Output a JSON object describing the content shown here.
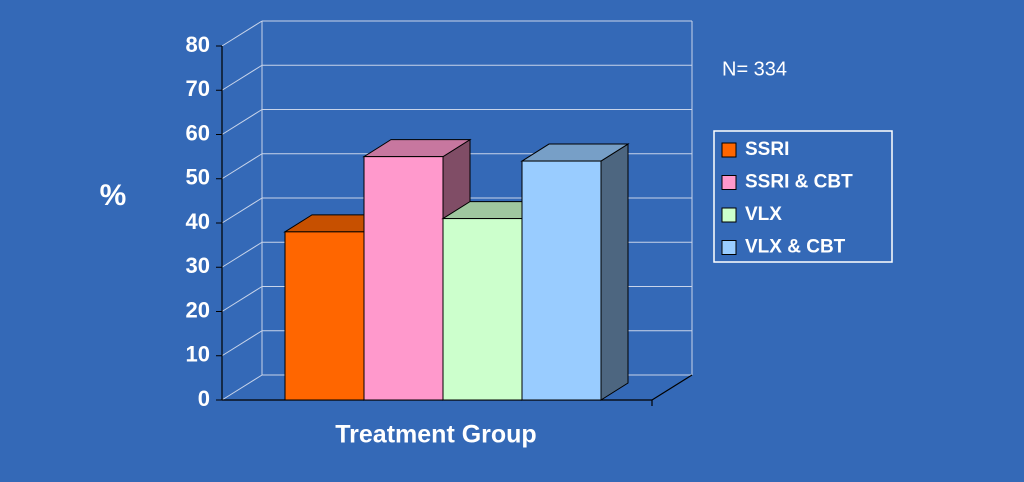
{
  "chart_data": {
    "type": "bar3d",
    "y_label": "%",
    "x_label": "Treatment Group",
    "annotation": "N= 334",
    "series": [
      {
        "name": "SSRI",
        "color": "#ff6600",
        "values": [
          38
        ]
      },
      {
        "name": "SSRI & CBT",
        "color": "#ff99cc",
        "values": [
          55
        ]
      },
      {
        "name": "VLX",
        "color": "#ccffcc",
        "values": [
          41
        ]
      },
      {
        "name": "VLX & CBT",
        "color": "#99ccff",
        "values": [
          54
        ]
      }
    ],
    "ylim": [
      0,
      80
    ],
    "yticks": [
      0,
      10,
      20,
      30,
      40,
      50,
      60,
      70,
      80
    ],
    "grid": true,
    "legend": "right"
  }
}
